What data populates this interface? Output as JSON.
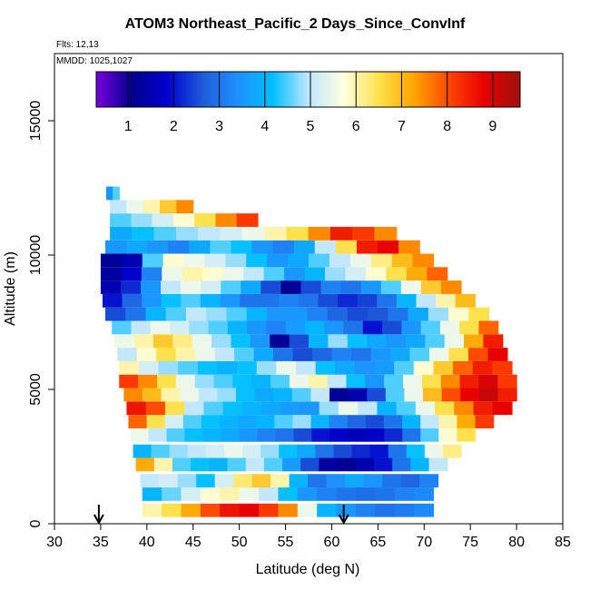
{
  "chart_data": {
    "type": "heatmap",
    "title": "ATOM3 Northeast_Pacific_2 Days_Since_ConvInf",
    "subtitle_flights": "Flts: 12,13",
    "subtitle_dates": "MMDD: 1025,1027",
    "xlabel": "Latitude (deg N)",
    "ylabel": "Altitude (m)",
    "xlim": [
      30,
      85
    ],
    "ylim": [
      0,
      17500
    ],
    "x_ticks": [
      30,
      35,
      40,
      45,
      50,
      55,
      60,
      65,
      70,
      75,
      80,
      85
    ],
    "y_ticks": [
      0,
      5000,
      10000,
      15000
    ],
    "colorbar": {
      "ticks": [
        1,
        2,
        3,
        4,
        5,
        6,
        7,
        8,
        9
      ],
      "range": [
        0.3,
        9.6
      ],
      "colors": [
        "#7b00e0",
        "#00008b",
        "#0000cd",
        "#1e5bd8",
        "#1e90ff",
        "#00bfff",
        "#bfe6ff",
        "#ffffe0",
        "#ffe14d",
        "#ffa500",
        "#ff4500",
        "#e60000",
        "#a01010"
      ]
    },
    "arrows_latitude": [
      34.8,
      61.3
    ],
    "flight_profiles": [
      {
        "alt": 500,
        "lat_start": 39.5,
        "lat_end": 71,
        "values": [
          6.0,
          6.5,
          7.2,
          8.0,
          8.6,
          8.8,
          8.2,
          7.5,
          5.5,
          4.0,
          3.5,
          3.2,
          3.0,
          3.1,
          3.3
        ]
      },
      {
        "alt": 1100,
        "lat_start": 39.5,
        "lat_end": 71,
        "values": [
          4.0,
          4.6,
          5.2,
          5.8,
          6.0,
          5.5,
          5.0,
          4.2,
          3.5,
          3.2,
          3.0,
          2.9,
          3.0,
          3.2,
          3.3
        ]
      },
      {
        "alt": 1600,
        "lat_start": 39.3,
        "lat_end": 71.5,
        "values": [
          5.0,
          5.2,
          4.8,
          4.2,
          5.2,
          6.3,
          6.8,
          6.0,
          4.0,
          3.0,
          3.4,
          3.8,
          3.5,
          3.0,
          2.8,
          3.2
        ]
      },
      {
        "alt": 2200,
        "lat_start": 38.8,
        "lat_end": 72.5,
        "values": [
          7.2,
          6.0,
          4.5,
          4.2,
          4.0,
          4.5,
          5.0,
          4.5,
          3.6,
          2.5,
          1.3,
          1.2,
          1.5,
          2.0,
          3.0,
          4.0,
          5.0
        ]
      },
      {
        "alt": 2700,
        "lat_start": 38.5,
        "lat_end": 74,
        "values": [
          4.0,
          4.5,
          4.8,
          5.0,
          5.2,
          5.5,
          5.2,
          4.8,
          4.2,
          3.8,
          3.0,
          2.5,
          2.2,
          2.0,
          3.0,
          4.2,
          5.5,
          6.2
        ]
      },
      {
        "alt": 3300,
        "lat_start": 38.2,
        "lat_end": 75.5,
        "values": [
          5.5,
          5.0,
          4.5,
          4.2,
          4.0,
          3.8,
          3.5,
          3.2,
          3.0,
          2.5,
          2.0,
          1.8,
          1.6,
          1.8,
          2.2,
          3.0,
          4.5,
          5.8,
          6.5
        ]
      },
      {
        "alt": 3800,
        "lat_start": 38,
        "lat_end": 77.5,
        "values": [
          7.8,
          6.5,
          5.2,
          4.5,
          4.2,
          4.0,
          3.8,
          4.0,
          4.5,
          4.8,
          4.0,
          3.2,
          2.8,
          2.5,
          3.0,
          4.0,
          5.0,
          6.0,
          7.2,
          8.2
        ]
      },
      {
        "alt": 4300,
        "lat_start": 37.8,
        "lat_end": 79.5,
        "values": [
          8.6,
          8.0,
          6.5,
          5.0,
          4.5,
          4.2,
          4.0,
          3.8,
          3.6,
          3.5,
          4.8,
          5.5,
          5.0,
          4.0,
          4.5,
          5.5,
          6.5,
          7.5,
          8.5,
          8.8
        ]
      },
      {
        "alt": 4800,
        "lat_start": 37.5,
        "lat_end": 80,
        "values": [
          7.5,
          7.0,
          6.0,
          5.5,
          5.0,
          4.8,
          4.2,
          3.8,
          4.0,
          4.5,
          5.0,
          1.2,
          1.5,
          2.5,
          4.5,
          5.5,
          7.0,
          8.0,
          8.8,
          9.2,
          8.5
        ]
      },
      {
        "alt": 5300,
        "lat_start": 37,
        "lat_end": 80,
        "values": [
          8.2,
          7.5,
          6.5,
          5.5,
          4.8,
          4.5,
          4.2,
          4.0,
          4.5,
          5.5,
          6.0,
          5.0,
          4.2,
          3.5,
          4.5,
          5.5,
          6.5,
          7.5,
          8.5,
          9.0,
          8.2
        ]
      },
      {
        "alt": 5800,
        "lat_start": 37,
        "lat_end": 79.5,
        "values": [
          6.0,
          5.2,
          4.8,
          4.5,
          4.2,
          4.0,
          4.2,
          4.8,
          5.5,
          5.0,
          4.2,
          3.8,
          3.5,
          3.6,
          4.5,
          5.8,
          6.8,
          7.8,
          8.5,
          8.2
        ]
      },
      {
        "alt": 6300,
        "lat_start": 36.8,
        "lat_end": 79,
        "values": [
          5.0,
          5.8,
          6.5,
          6.0,
          5.5,
          5.0,
          4.5,
          3.8,
          3.0,
          2.5,
          2.8,
          3.2,
          3.0,
          3.5,
          3.8,
          4.5,
          5.5,
          6.5,
          8.0,
          8.8
        ]
      },
      {
        "alt": 6800,
        "lat_start": 36.5,
        "lat_end": 78.5,
        "values": [
          5.5,
          6.0,
          6.8,
          6.2,
          5.5,
          4.8,
          4.2,
          3.5,
          1.2,
          2.5,
          4.0,
          4.8,
          4.2,
          3.8,
          3.5,
          3.8,
          4.5,
          5.5,
          7.2,
          8.5
        ]
      },
      {
        "alt": 7300,
        "lat_start": 36.2,
        "lat_end": 78,
        "values": [
          4.5,
          5.0,
          5.5,
          5.2,
          4.8,
          4.5,
          4.0,
          3.5,
          3.2,
          3.6,
          4.0,
          3.5,
          3.0,
          2.0,
          2.5,
          3.5,
          4.5,
          5.5,
          6.5,
          7.8
        ]
      },
      {
        "alt": 7800,
        "lat_start": 35.5,
        "lat_end": 77,
        "values": [
          2.5,
          3.0,
          4.0,
          4.5,
          5.0,
          4.8,
          4.5,
          4.0,
          3.5,
          3.5,
          3.2,
          2.8,
          2.5,
          2.6,
          3.0,
          3.8,
          4.8,
          5.8,
          6.5
        ]
      },
      {
        "alt": 8300,
        "lat_start": 35.2,
        "lat_end": 75.5,
        "values": [
          2.0,
          2.8,
          3.5,
          4.2,
          4.5,
          4.0,
          3.5,
          3.0,
          3.0,
          3.2,
          3.0,
          2.5,
          2.2,
          2.4,
          3.0,
          4.0,
          5.0,
          6.0,
          7.0
        ]
      },
      {
        "alt": 8800,
        "lat_start": 35,
        "lat_end": 74,
        "values": [
          1.5,
          2.2,
          3.5,
          5.0,
          5.5,
          5.2,
          4.5,
          3.8,
          2.5,
          1.2,
          2.5,
          3.2,
          3.0,
          3.5,
          4.5,
          5.5,
          6.8,
          7.5
        ]
      },
      {
        "alt": 9300,
        "lat_start": 35,
        "lat_end": 72.5,
        "values": [
          1.3,
          1.8,
          3.2,
          5.5,
          6.0,
          5.8,
          5.5,
          5.0,
          4.5,
          3.5,
          4.0,
          4.8,
          5.2,
          5.8,
          6.5,
          7.2,
          7.8
        ]
      },
      {
        "alt": 9800,
        "lat_start": 35,
        "lat_end": 71,
        "values": [
          1.2,
          1.5,
          4.5,
          5.8,
          5.5,
          5.2,
          4.8,
          4.2,
          3.5,
          3.8,
          4.5,
          5.0,
          5.5,
          6.2,
          7.0,
          7.5
        ]
      },
      {
        "alt": 10300,
        "lat_start": 35.5,
        "lat_end": 69.5,
        "values": [
          3.5,
          3.8,
          3.5,
          3.2,
          3.8,
          4.5,
          4.2,
          3.5,
          3.2,
          3.8,
          5.0,
          6.5,
          8.5,
          8.8,
          7.5
        ]
      },
      {
        "alt": 10800,
        "lat_start": 36,
        "lat_end": 67,
        "values": [
          3.8,
          4.2,
          4.5,
          4.8,
          5.0,
          5.2,
          5.5,
          6.0,
          6.5,
          7.5,
          8.5,
          8.2,
          7.5
        ]
      },
      {
        "alt": 11300,
        "lat_start": 36,
        "lat_end": 52,
        "values": [
          4.5,
          4.8,
          5.2,
          5.8,
          6.5,
          7.5,
          8.2
        ]
      },
      {
        "alt": 11800,
        "lat_start": 36,
        "lat_end": 45,
        "values": [
          5.0,
          5.5,
          6.0,
          6.8,
          7.5
        ]
      },
      {
        "alt": 12300,
        "lat_start": 35.6,
        "lat_end": 37,
        "values": [
          3.5,
          4.5
        ]
      }
    ]
  }
}
